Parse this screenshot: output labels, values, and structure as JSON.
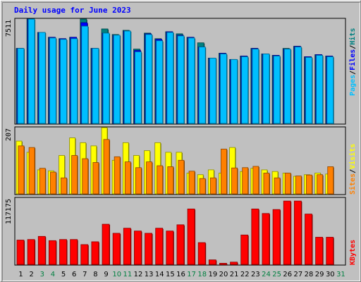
{
  "title": "Daily usage for June 2023",
  "chart_data": [
    {
      "type": "bar",
      "panel": "pages-files-hits",
      "y_label": "7511",
      "categories": [
        "1",
        "2",
        "3",
        "4",
        "5",
        "6",
        "7",
        "8",
        "9",
        "10",
        "11",
        "12",
        "13",
        "14",
        "15",
        "16",
        "17",
        "18",
        "19",
        "20",
        "21",
        "22",
        "23",
        "24",
        "25",
        "26",
        "27",
        "28",
        "29",
        "30",
        "31"
      ],
      "ylim": [
        0,
        7511
      ],
      "series": [
        {
          "name": "Hits",
          "color": "#008080",
          "values": [
            5400,
            7511,
            6550,
            6200,
            6100,
            6200,
            7511,
            5400,
            6800,
            6400,
            6700,
            5350,
            6500,
            6100,
            6600,
            6450,
            6200,
            5800,
            4700,
            5050,
            4600,
            4850,
            5400,
            5000,
            4900,
            5400,
            5550,
            4800,
            4950,
            4850,
            0
          ]
        },
        {
          "name": "Files",
          "color": "#0000ff",
          "values": [
            5400,
            7511,
            6550,
            6200,
            6100,
            6200,
            7250,
            5400,
            6500,
            6350,
            6650,
            5250,
            6450,
            6050,
            6600,
            6350,
            6200,
            5500,
            4700,
            5050,
            4600,
            4850,
            5400,
            5000,
            4900,
            5350,
            5550,
            4800,
            4950,
            4850,
            0
          ]
        },
        {
          "name": "Pages",
          "color": "#00bfff",
          "values": [
            5400,
            7511,
            6550,
            6150,
            6050,
            6100,
            7000,
            5400,
            6500,
            6350,
            6650,
            5150,
            6400,
            5950,
            6550,
            6300,
            6150,
            5500,
            4700,
            5000,
            4600,
            4800,
            5350,
            5000,
            4850,
            5350,
            5500,
            4750,
            4900,
            4800,
            0
          ]
        }
      ]
    },
    {
      "type": "bar",
      "panel": "visits-sites",
      "y_label": "207",
      "categories": [
        "1",
        "2",
        "3",
        "4",
        "5",
        "6",
        "7",
        "8",
        "9",
        "10",
        "11",
        "12",
        "13",
        "14",
        "15",
        "16",
        "17",
        "18",
        "19",
        "20",
        "21",
        "22",
        "23",
        "24",
        "25",
        "26",
        "27",
        "28",
        "29",
        "30",
        "31"
      ],
      "ylim": [
        0,
        207
      ],
      "series": [
        {
          "name": "Visits",
          "color": "#ffff00",
          "values": [
            165,
            130,
            75,
            72,
            120,
            175,
            160,
            150,
            207,
            105,
            160,
            120,
            135,
            160,
            130,
            130,
            65,
            60,
            75,
            65,
            145,
            70,
            80,
            75,
            70,
            65,
            55,
            60,
            65,
            62,
            0
          ]
        },
        {
          "name": "Sites",
          "color": "#ff8000",
          "values": [
            150,
            145,
            80,
            68,
            50,
            120,
            110,
            98,
            170,
            116,
            100,
            82,
            100,
            88,
            85,
            105,
            71,
            48,
            50,
            140,
            81,
            82,
            86,
            65,
            50,
            65,
            56,
            59,
            60,
            85,
            0
          ]
        }
      ]
    },
    {
      "type": "bar",
      "panel": "kbytes",
      "y_label": "117175",
      "categories": [
        "1",
        "2",
        "3",
        "4",
        "5",
        "6",
        "7",
        "8",
        "9",
        "10",
        "11",
        "12",
        "13",
        "14",
        "15",
        "16",
        "17",
        "18",
        "19",
        "20",
        "21",
        "22",
        "23",
        "24",
        "25",
        "26",
        "27",
        "28",
        "29",
        "30",
        "31"
      ],
      "ylim": [
        0,
        117175
      ],
      "series": [
        {
          "name": "KBytes",
          "color": "#ff0000",
          "values": [
            43000,
            44000,
            49500,
            42000,
            44000,
            44000,
            35000,
            40000,
            71000,
            55000,
            64000,
            59000,
            55000,
            64000,
            59000,
            70000,
            98000,
            38500,
            8000,
            2000,
            4000,
            52000,
            98000,
            90000,
            97000,
            112000,
            112000,
            89000,
            48000,
            48000,
            0
          ]
        }
      ]
    }
  ],
  "x_tick_colors": {
    "weekday": "#000000",
    "weekend": "#008040"
  },
  "weekend_days": [
    "3",
    "4",
    "10",
    "11",
    "17",
    "18",
    "24",
    "25",
    "31"
  ],
  "legends": {
    "top": [
      {
        "text": "Pages",
        "color": "#00bfff"
      },
      {
        "text": "/",
        "color": "#000000"
      },
      {
        "text": "Files",
        "color": "#0000ff"
      },
      {
        "text": "/",
        "color": "#000000"
      },
      {
        "text": "Hits",
        "color": "#008080"
      }
    ],
    "middle": [
      {
        "text": "Sites",
        "color": "#ff8000"
      },
      {
        "text": "/",
        "color": "#000000"
      },
      {
        "text": "Visits",
        "color": "#ffff00"
      }
    ],
    "bottom": [
      {
        "text": "KBytes",
        "color": "#ff0000"
      }
    ]
  }
}
